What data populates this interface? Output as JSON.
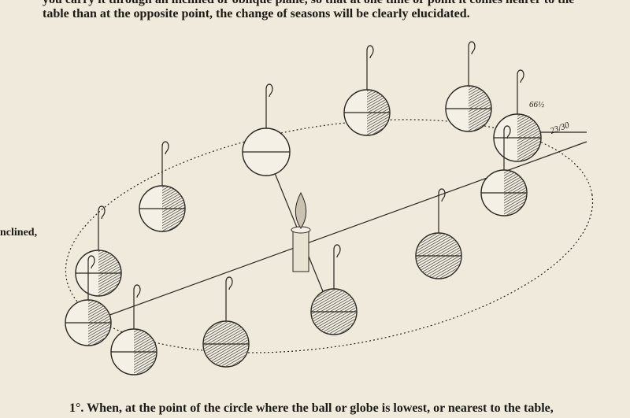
{
  "page": {
    "top_lines": [
      "you carry it through an inclined or oblique plane, so that at one time or point it comes nearer to the",
      "table than at the opposite point, the change of seasons will be clearly elucidated."
    ],
    "margin_text": "nclined,",
    "figure": {
      "label_angle": "66½",
      "label_tilt": "23/30"
    },
    "bottom_line": "1°. When, at the point of the circle where the ball or globe is lowest, or nearest to the table,"
  }
}
